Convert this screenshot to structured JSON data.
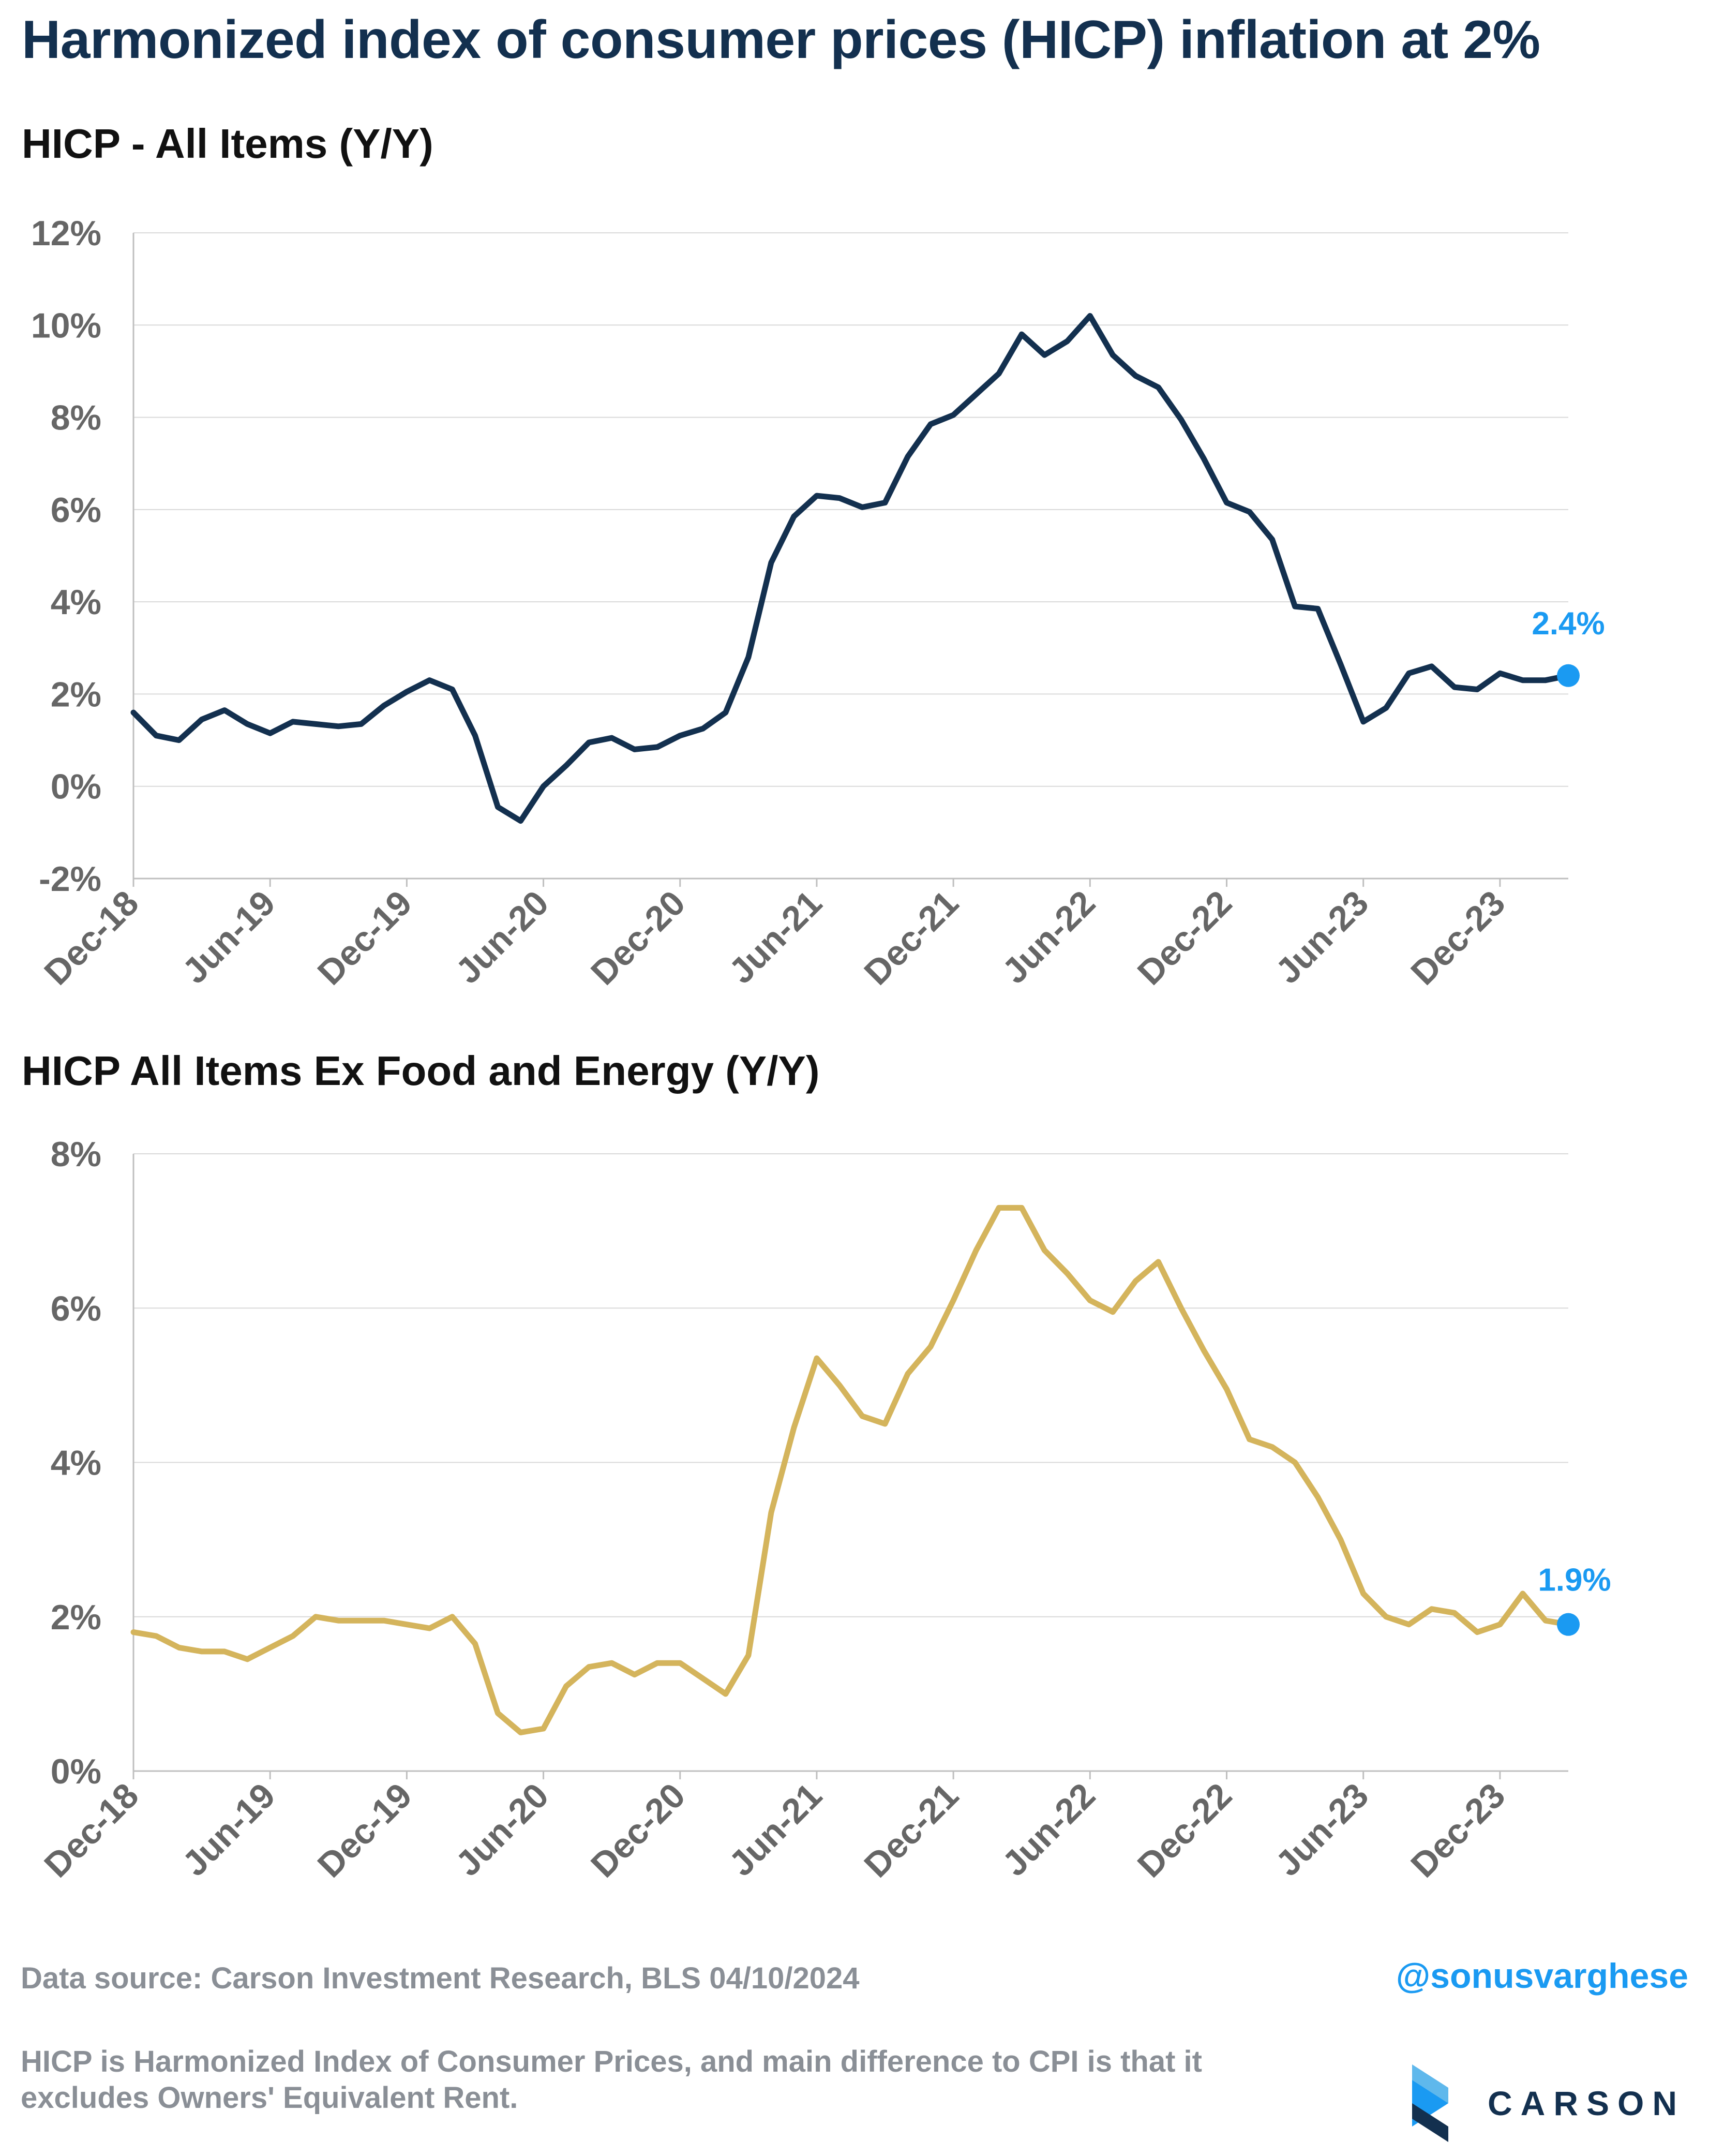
{
  "title": "Harmonized index of consumer prices (HICP) inflation at 2%",
  "charts_titles": [
    "HICP - All Items (Y/Y)",
    "HICP All Items Ex Food and Energy (Y/Y)"
  ],
  "source": "Data source: Carson Investment Research, BLS   04/10/2024",
  "handle": "@sonusvarghese",
  "note": "HICP is Harmonized Index of Consumer Prices, and main difference to CPI is that it excludes Owners' Equivalent Rent.",
  "logo": {
    "text": "CARSON",
    "icon": "carson-chevron-icon"
  },
  "colors": {
    "line1": "#13304f",
    "line2": "#d4b45c",
    "marker": "#1a9af2",
    "grid": "#d9d9d9",
    "axis": "#bfbfbf",
    "tick": "#666666"
  },
  "chart_data": [
    {
      "type": "line",
      "title": "HICP - All Items (Y/Y)",
      "xlabel": "",
      "ylabel": "",
      "x_tick_labels": [
        "Dec-18",
        "Jun-19",
        "Dec-19",
        "Jun-20",
        "Dec-20",
        "Jun-21",
        "Dec-21",
        "Jun-22",
        "Dec-22",
        "Jun-23",
        "Dec-23"
      ],
      "x_start": "Dec-18",
      "x_end": "Mar-24",
      "x_frequency": "monthly",
      "ylim": [
        -2,
        12
      ],
      "y_ticks": [
        -2,
        0,
        2,
        4,
        6,
        8,
        10,
        12
      ],
      "y_tick_labels": [
        "-2%",
        "0%",
        "2%",
        "4%",
        "6%",
        "8%",
        "10%",
        "12%"
      ],
      "grid": "horizontal",
      "end_label": "2.4%",
      "series": [
        {
          "values": [
            1.6,
            1.1,
            1.0,
            1.45,
            1.65,
            1.35,
            1.15,
            1.4,
            1.35,
            1.3,
            1.35,
            1.75,
            2.05,
            2.3,
            2.1,
            1.1,
            -0.45,
            -0.75,
            0.0,
            0.45,
            0.95,
            1.05,
            0.8,
            0.85,
            1.1,
            1.25,
            1.6,
            2.8,
            4.85,
            5.85,
            6.3,
            6.25,
            6.05,
            6.15,
            7.15,
            7.85,
            8.05,
            8.5,
            8.95,
            9.8,
            9.35,
            9.65,
            10.2,
            9.35,
            8.9,
            8.65,
            7.95,
            7.1,
            6.15,
            5.95,
            5.35,
            3.9,
            3.85,
            2.65,
            1.4,
            1.7,
            2.45,
            2.6,
            2.15,
            2.1,
            2.45,
            2.3,
            2.3,
            2.4
          ]
        }
      ]
    },
    {
      "type": "line",
      "title": "HICP All Items Ex Food and Energy (Y/Y)",
      "xlabel": "",
      "ylabel": "",
      "x_tick_labels": [
        "Dec-18",
        "Jun-19",
        "Dec-19",
        "Jun-20",
        "Dec-20",
        "Jun-21",
        "Dec-21",
        "Jun-22",
        "Dec-22",
        "Jun-23",
        "Dec-23"
      ],
      "x_start": "Dec-18",
      "x_end": "Mar-24",
      "x_frequency": "monthly",
      "ylim": [
        0,
        8
      ],
      "y_ticks": [
        0,
        2,
        4,
        6,
        8
      ],
      "y_tick_labels": [
        "0%",
        "2%",
        "4%",
        "6%",
        "8%"
      ],
      "grid": "horizontal",
      "end_label": "1.9%",
      "series": [
        {
          "values": [
            1.8,
            1.75,
            1.6,
            1.55,
            1.55,
            1.45,
            1.6,
            1.75,
            2.0,
            1.95,
            1.95,
            1.95,
            1.9,
            1.85,
            2.0,
            1.65,
            0.75,
            0.5,
            0.55,
            1.1,
            1.35,
            1.4,
            1.25,
            1.4,
            1.4,
            1.2,
            1.0,
            1.5,
            3.35,
            4.45,
            5.35,
            5.0,
            4.6,
            4.5,
            5.15,
            5.5,
            6.1,
            6.75,
            7.3,
            7.3,
            6.75,
            6.45,
            6.1,
            5.95,
            6.35,
            6.6,
            6.0,
            5.45,
            4.95,
            4.3,
            4.2,
            4.0,
            3.55,
            3.0,
            2.3,
            2.0,
            1.9,
            2.1,
            2.05,
            1.8,
            1.9,
            2.3,
            1.95,
            1.9
          ]
        }
      ]
    }
  ]
}
